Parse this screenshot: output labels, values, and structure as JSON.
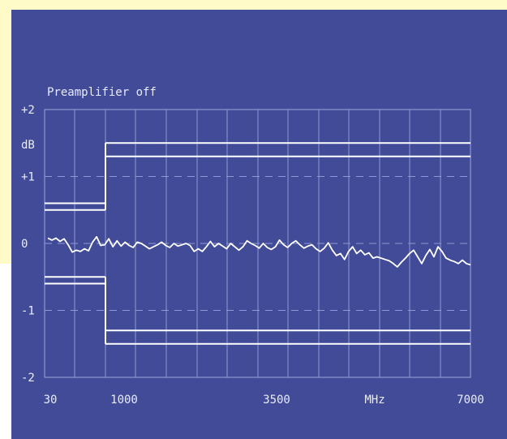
{
  "chart_data": {
    "type": "line",
    "title": "Preamplifier off",
    "ylabel": "dB",
    "xlabel": "",
    "x_tick_labels": [
      "30",
      "1000",
      "3500",
      "MHz",
      "7000"
    ],
    "y_tick_labels": [
      "+2",
      "+1",
      "0",
      "-1",
      "-2"
    ],
    "ylim": [
      -2,
      2
    ],
    "grid": true,
    "series": [
      {
        "values": [
          0.08,
          0.05,
          0.08,
          0.03,
          0.07,
          -0.02,
          -0.13,
          -0.1,
          -0.12,
          -0.08,
          -0.11,
          0.02,
          0.1,
          -0.03,
          -0.02,
          0.07,
          -0.05,
          0.04,
          -0.04,
          0.02,
          -0.03,
          -0.06,
          0.02,
          0.0,
          -0.04,
          -0.08,
          -0.05,
          -0.02,
          0.02,
          -0.03,
          -0.06,
          0.0,
          -0.04,
          -0.02,
          0.0,
          -0.03,
          -0.12,
          -0.08,
          -0.12,
          -0.05,
          0.03,
          -0.05,
          0.0,
          -0.04,
          -0.08,
          0.0,
          -0.05,
          -0.1,
          -0.05,
          0.04,
          0.0,
          -0.03,
          -0.07,
          0.0,
          -0.06,
          -0.09,
          -0.05,
          0.05,
          -0.02,
          -0.06,
          0.0,
          0.04,
          -0.02,
          -0.07,
          -0.04,
          -0.02,
          -0.08,
          -0.12,
          -0.07,
          0.01,
          -0.1,
          -0.18,
          -0.15,
          -0.24,
          -0.12,
          -0.05,
          -0.15,
          -0.1,
          -0.17,
          -0.14,
          -0.22,
          -0.2,
          -0.22,
          -0.24,
          -0.26,
          -0.3,
          -0.35,
          -0.28,
          -0.22,
          -0.15,
          -0.1,
          -0.2,
          -0.3,
          -0.18,
          -0.09,
          -0.2,
          -0.05,
          -0.12,
          -0.22,
          -0.25,
          -0.27,
          -0.3,
          -0.25,
          -0.3,
          -0.32
        ]
      }
    ],
    "limits": {
      "upper": [
        {
          "x_to": 1000,
          "values": [
            0.6,
            0.5
          ]
        },
        {
          "x_from": 1000,
          "values": [
            1.5,
            1.3
          ]
        }
      ],
      "lower": [
        {
          "x_to": 1000,
          "values": [
            -0.5,
            -0.6
          ]
        },
        {
          "x_from": 1000,
          "values": [
            -1.3,
            -1.5
          ]
        }
      ]
    }
  },
  "colors": {
    "page_background": "#fefbc8",
    "plot_background": "#414b98",
    "trace": "#ffffff",
    "grid": "#8e98d2",
    "text": "#e9ecfb"
  }
}
